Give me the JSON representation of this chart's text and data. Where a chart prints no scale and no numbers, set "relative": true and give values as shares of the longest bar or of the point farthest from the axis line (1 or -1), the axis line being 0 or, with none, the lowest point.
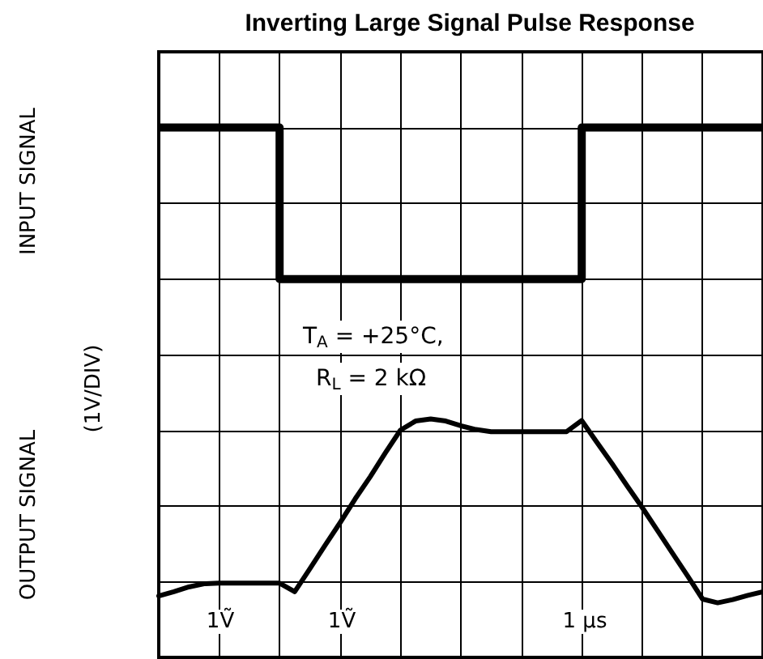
{
  "chart_data": {
    "type": "line",
    "title": "Inverting Large Signal Pulse Response",
    "ylabel": "(1V/DIV)",
    "relative": true,
    "tick_labels": false,
    "grid": true,
    "marker": "none",
    "annotations": [
      "INPUT SIGNAL",
      "OUTPUT SIGNAL",
      "T$_{A}$ = +25°C,",
      "R$_{L}$ = 2 kΩ",
      "1Ṽ",
      "1Ṽ",
      "1 µs"
    ],
    "categories": [
      null,
      null,
      null,
      null,
      null,
      null,
      null,
      null,
      null,
      null,
      null,
      null,
      null,
      null,
      null,
      null,
      null,
      null,
      null,
      null,
      null,
      null,
      null,
      null,
      null,
      null,
      null,
      null,
      null,
      null,
      null,
      null,
      null,
      null,
      null,
      null,
      null,
      null,
      null,
      null,
      null
    ],
    "series": [
      {
        "type": "step",
        "color": "#000000",
        "values": [
          1,
          1,
          1,
          1,
          1,
          1,
          1,
          1,
          0.714,
          0.714,
          0.714,
          0.714,
          0.714,
          0.714,
          0.714,
          0.714,
          0.714,
          0.714,
          0.714,
          0.714,
          0.714,
          0.714,
          0.714,
          0.714,
          0.714,
          0.714,
          0.714,
          0.714,
          1,
          1,
          1,
          1,
          1,
          1,
          1,
          1,
          1,
          1,
          1,
          1,
          1
        ]
      },
      {
        "type": "line",
        "color": "#000000",
        "values": [
          0.116,
          0.124,
          0.133,
          0.139,
          0.14,
          0.14,
          0.14,
          0.14,
          0.14,
          0.124,
          0.167,
          0.211,
          0.254,
          0.299,
          0.341,
          0.386,
          0.429,
          0.446,
          0.45,
          0.446,
          0.437,
          0.43,
          0.426,
          0.426,
          0.426,
          0.426,
          0.426,
          0.426,
          0.447,
          0.406,
          0.366,
          0.324,
          0.283,
          0.24,
          0.197,
          0.154,
          0.11,
          0.103,
          0.109,
          0.117,
          0.124
        ]
      }
    ]
  }
}
